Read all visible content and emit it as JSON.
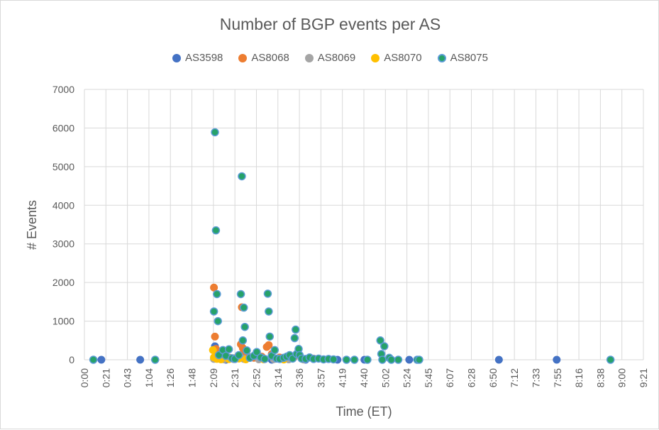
{
  "chart_data": {
    "type": "scatter",
    "title": "Number of BGP events per AS",
    "xlabel": "Time (ET)",
    "ylabel": "# Events",
    "ylim": [
      0,
      7000
    ],
    "yticks": [
      0,
      1000,
      2000,
      3000,
      4000,
      5000,
      6000,
      7000
    ],
    "xlim_minutes": [
      0,
      561
    ],
    "xticks": [
      "0:00",
      "0:21",
      "0:43",
      "1:04",
      "1:26",
      "1:48",
      "2:09",
      "2:31",
      "2:52",
      "3:14",
      "3:36",
      "3:57",
      "4:19",
      "4:40",
      "5:02",
      "5:24",
      "5:45",
      "6:07",
      "6:28",
      "6:50",
      "7:12",
      "7:33",
      "7:55",
      "8:16",
      "8:38",
      "9:00",
      "9:21"
    ],
    "grid": true,
    "legend_position": "top",
    "series": [
      {
        "name": "AS3598",
        "color": "#4472c4",
        "points": [
          [
            17,
            0
          ],
          [
            56,
            0
          ],
          [
            131,
            350
          ],
          [
            142,
            0
          ],
          [
            188,
            0
          ],
          [
            222,
            0
          ],
          [
            254,
            0
          ],
          [
            281,
            0
          ],
          [
            326,
            0
          ],
          [
            416,
            0
          ],
          [
            474,
            0
          ]
        ]
      },
      {
        "name": "AS8068",
        "color": "#ed7d31",
        "points": [
          [
            130,
            1870
          ],
          [
            131,
            600
          ],
          [
            132,
            280
          ],
          [
            134,
            150
          ],
          [
            138,
            70
          ],
          [
            146,
            50
          ],
          [
            150,
            40
          ],
          [
            157,
            400
          ],
          [
            158,
            1360
          ],
          [
            159,
            300
          ],
          [
            160,
            200
          ],
          [
            163,
            120
          ],
          [
            170,
            50
          ],
          [
            178,
            80
          ],
          [
            183,
            330
          ],
          [
            185,
            380
          ],
          [
            188,
            150
          ],
          [
            196,
            60
          ],
          [
            204,
            80
          ],
          [
            210,
            60
          ],
          [
            230,
            30
          ]
        ]
      },
      {
        "name": "AS8069",
        "color": "#a5a5a5",
        "points": [
          [
            130,
            20
          ],
          [
            134,
            30
          ],
          [
            140,
            10
          ],
          [
            150,
            15
          ],
          [
            160,
            20
          ],
          [
            175,
            10
          ],
          [
            190,
            15
          ],
          [
            205,
            10
          ],
          [
            220,
            5
          ]
        ]
      },
      {
        "name": "AS8070",
        "color": "#ffc000",
        "points": [
          [
            129,
            250
          ],
          [
            130,
            60
          ],
          [
            133,
            20
          ],
          [
            137,
            10
          ],
          [
            145,
            15
          ],
          [
            155,
            30
          ],
          [
            162,
            10
          ],
          [
            180,
            10
          ],
          [
            200,
            5
          ]
        ]
      },
      {
        "name": "AS8075",
        "color": "#26a269",
        "points": [
          [
            9,
            0
          ],
          [
            71,
            0
          ],
          [
            130,
            1250
          ],
          [
            131,
            5890
          ],
          [
            132,
            3350
          ],
          [
            133,
            1700
          ],
          [
            134,
            1000
          ],
          [
            135,
            120
          ],
          [
            139,
            250
          ],
          [
            142,
            100
          ],
          [
            145,
            270
          ],
          [
            148,
            40
          ],
          [
            151,
            20
          ],
          [
            155,
            120
          ],
          [
            157,
            1700
          ],
          [
            158,
            4750
          ],
          [
            159,
            500
          ],
          [
            160,
            1350
          ],
          [
            161,
            850
          ],
          [
            163,
            240
          ],
          [
            166,
            50
          ],
          [
            170,
            100
          ],
          [
            173,
            200
          ],
          [
            177,
            60
          ],
          [
            181,
            20
          ],
          [
            184,
            1710
          ],
          [
            185,
            1250
          ],
          [
            186,
            600
          ],
          [
            188,
            100
          ],
          [
            191,
            250
          ],
          [
            193,
            30
          ],
          [
            196,
            20
          ],
          [
            200,
            50
          ],
          [
            203,
            80
          ],
          [
            206,
            120
          ],
          [
            209,
            30
          ],
          [
            211,
            560
          ],
          [
            212,
            780
          ],
          [
            213,
            150
          ],
          [
            215,
            280
          ],
          [
            216,
            120
          ],
          [
            218,
            30
          ],
          [
            222,
            20
          ],
          [
            226,
            60
          ],
          [
            230,
            20
          ],
          [
            235,
            30
          ],
          [
            240,
            10
          ],
          [
            245,
            20
          ],
          [
            250,
            10
          ],
          [
            263,
            0
          ],
          [
            271,
            0
          ],
          [
            284,
            0
          ],
          [
            297,
            500
          ],
          [
            298,
            150
          ],
          [
            299,
            0
          ],
          [
            301,
            350
          ],
          [
            306,
            50
          ],
          [
            308,
            0
          ],
          [
            315,
            0
          ],
          [
            334,
            0
          ],
          [
            336,
            0
          ],
          [
            528,
            0
          ]
        ]
      }
    ]
  }
}
